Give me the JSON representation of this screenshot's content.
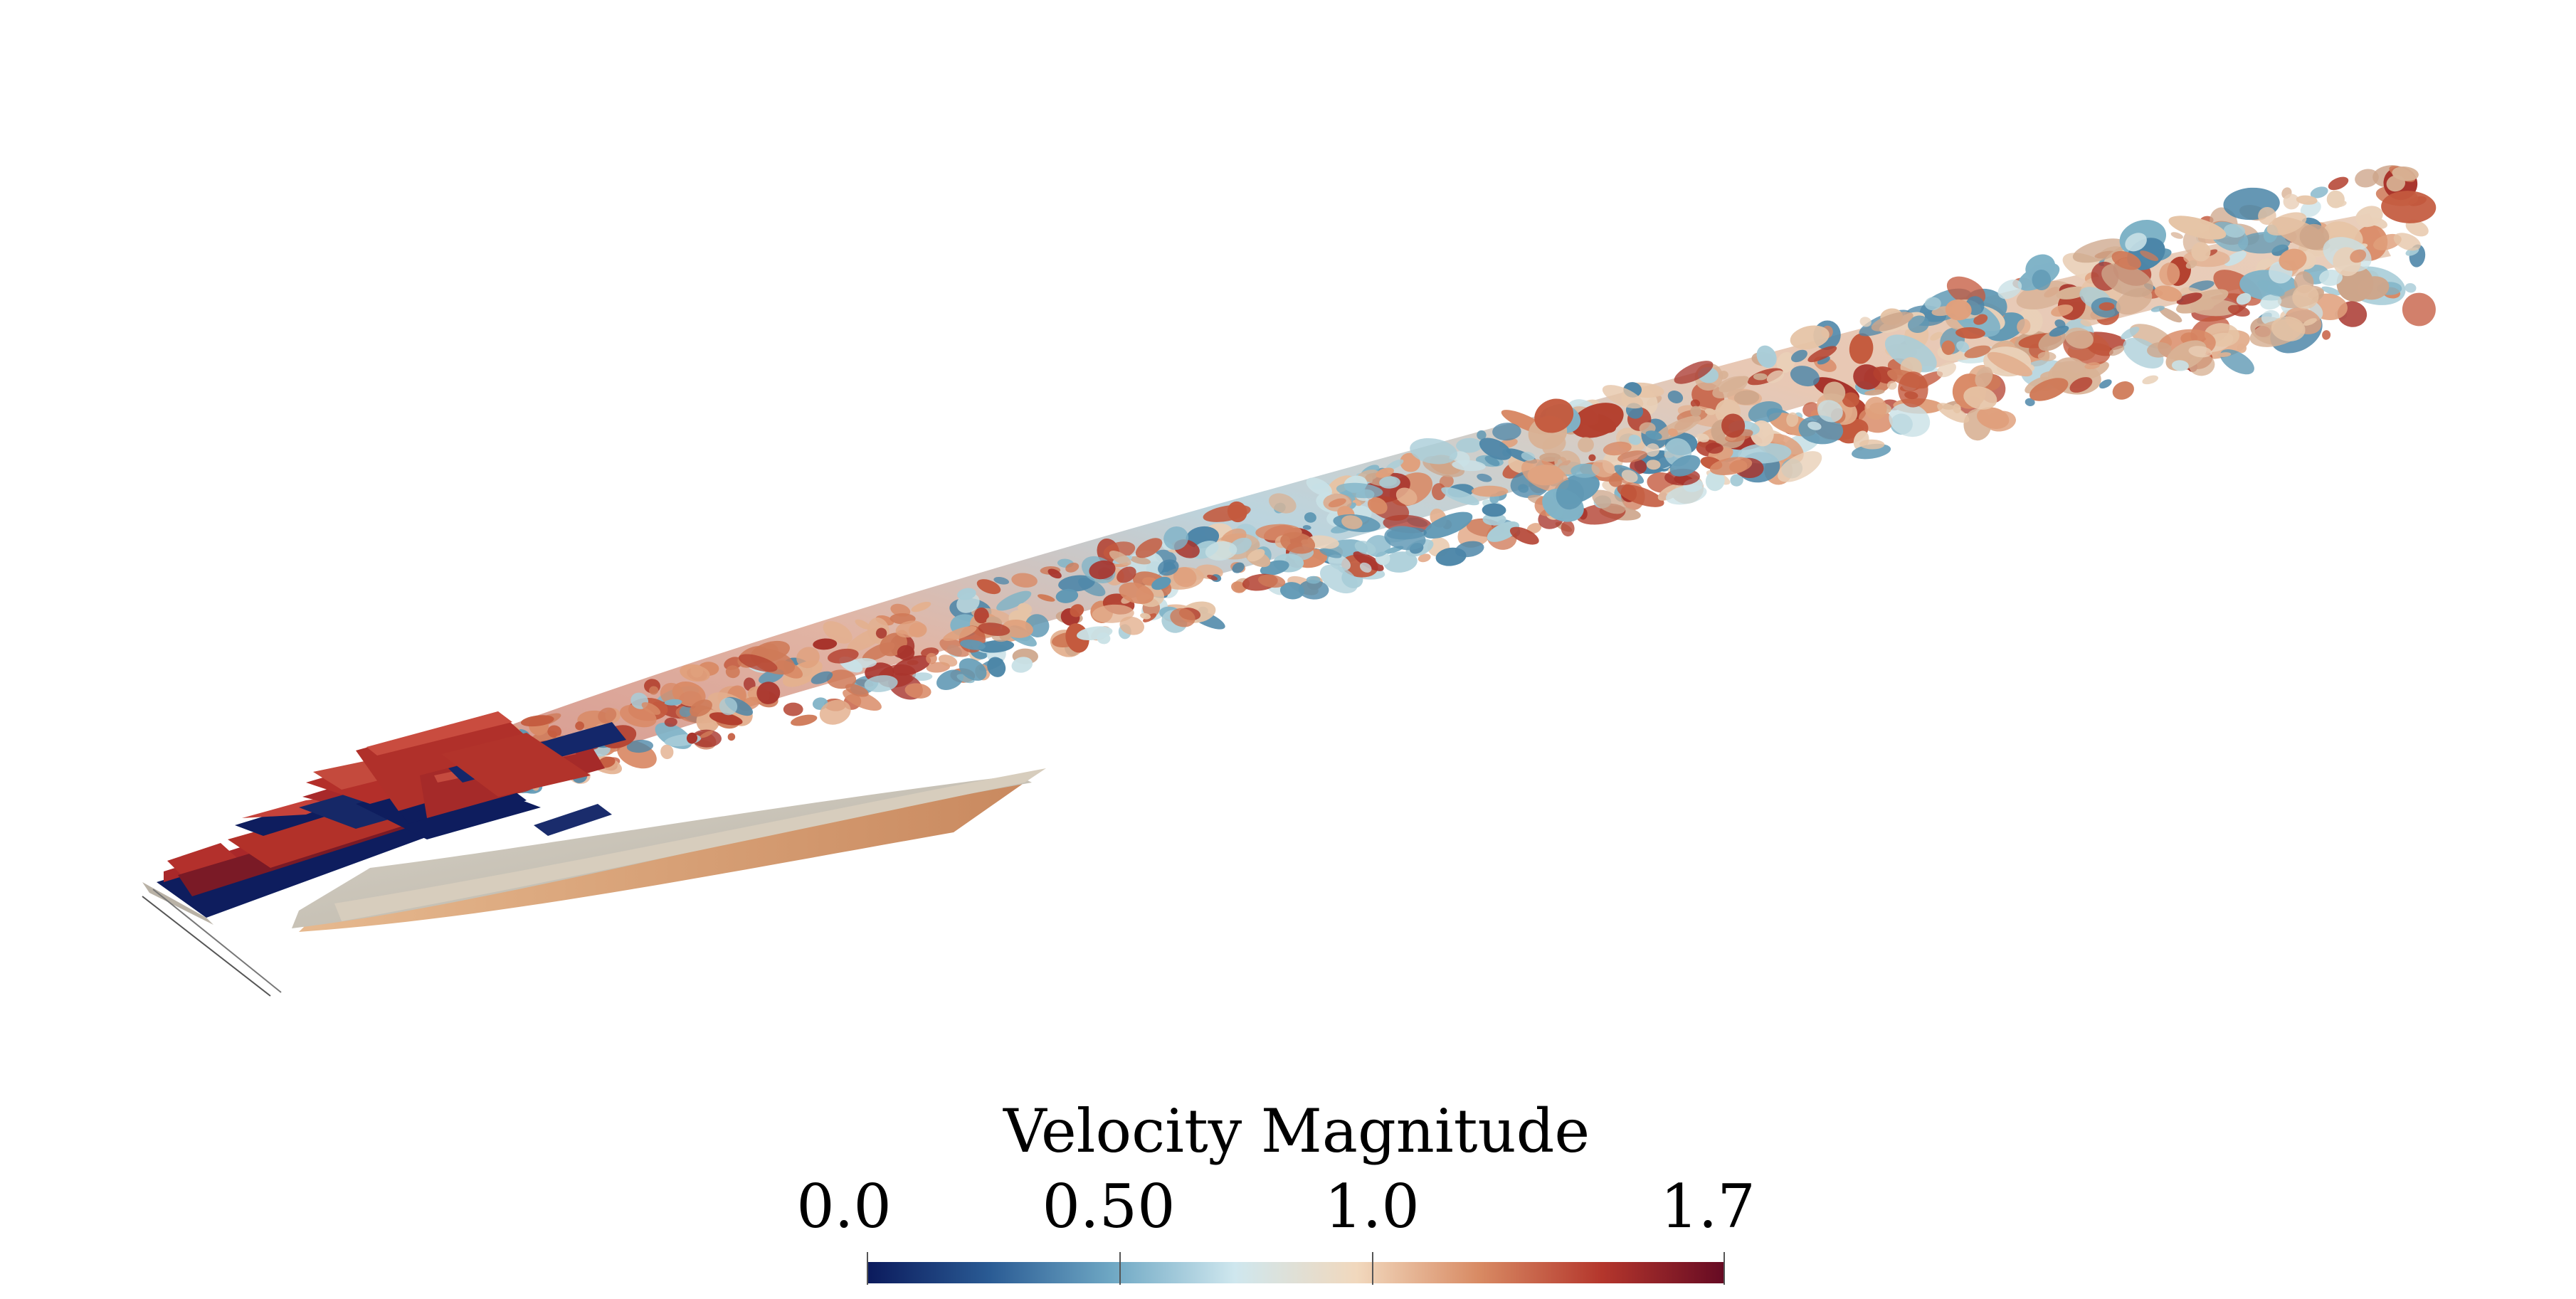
{
  "legend": {
    "title": "Velocity Magnitude",
    "ticks": [
      "0.0",
      "0.50",
      "1.0",
      "1.7"
    ],
    "tick_values": [
      0.0,
      0.5,
      1.0,
      1.7
    ],
    "range": [
      0.0,
      1.7
    ],
    "colormap": [
      "#0b1a5c",
      "#2a5b94",
      "#6fa8c4",
      "#cfe7ee",
      "#f1d8bd",
      "#d88a63",
      "#b4362c",
      "#650a23"
    ]
  },
  "scene": {
    "description_colors": {
      "body": "#c9c3b6",
      "high_velocity": "#b0302a",
      "low_velocity": "#0e1d5e",
      "wake_warm": "#d9906a",
      "wake_cool": "#7bb3c9"
    }
  }
}
